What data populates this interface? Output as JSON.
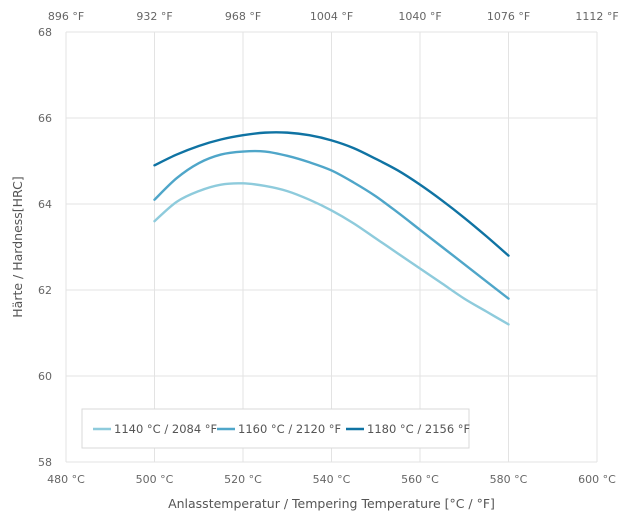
{
  "chart_data": {
    "type": "line",
    "xlabel": "Anlasstemperatur / Tempering Temperature [°C / °F]",
    "ylabel": "Härte / Hardness[HRC]",
    "xlim": [
      480,
      600
    ],
    "ylim": [
      58,
      68
    ],
    "grid": true,
    "legend_position": "bottom-left",
    "x_ticks": [
      480,
      500,
      520,
      540,
      560,
      580,
      600
    ],
    "x_tick_labels": [
      "480 °C",
      "500 °C",
      "520 °C",
      "540 °C",
      "560 °C",
      "580 °C",
      "600 °C"
    ],
    "x2_tick_labels": [
      "896 °F",
      "932 °F",
      "968 °F",
      "1004 °F",
      "1040 °F",
      "1076 °F",
      "1112 °F"
    ],
    "y_ticks": [
      58,
      60,
      62,
      64,
      66,
      68
    ],
    "y_tick_labels": [
      "58",
      "60",
      "62",
      "64",
      "66",
      "68"
    ],
    "series": [
      {
        "name": "1140 °C / 2084 °F",
        "color": "#8ecbdc",
        "x": [
          500,
          505,
          510,
          515,
          520,
          525,
          530,
          535,
          540,
          545,
          550,
          555,
          560,
          565,
          570,
          575,
          580
        ],
        "values": [
          63.6,
          64.05,
          64.3,
          64.45,
          64.48,
          64.42,
          64.3,
          64.1,
          63.85,
          63.55,
          63.2,
          62.85,
          62.5,
          62.15,
          61.8,
          61.5,
          61.2
        ]
      },
      {
        "name": "1160 °C / 2120 °F",
        "color": "#4fa6c9",
        "x": [
          500,
          505,
          510,
          515,
          520,
          525,
          530,
          535,
          540,
          545,
          550,
          555,
          560,
          565,
          570,
          575,
          580
        ],
        "values": [
          64.1,
          64.6,
          64.95,
          65.15,
          65.22,
          65.22,
          65.12,
          64.97,
          64.78,
          64.5,
          64.18,
          63.8,
          63.4,
          63.0,
          62.6,
          62.2,
          61.8
        ]
      },
      {
        "name": "1180 °C / 2156 °F",
        "color": "#0f73a3",
        "x": [
          500,
          505,
          510,
          515,
          520,
          525,
          530,
          535,
          540,
          545,
          550,
          555,
          560,
          565,
          570,
          575,
          580
        ],
        "values": [
          64.9,
          65.15,
          65.35,
          65.5,
          65.6,
          65.66,
          65.66,
          65.6,
          65.48,
          65.3,
          65.05,
          64.78,
          64.45,
          64.08,
          63.68,
          63.25,
          62.8
        ]
      }
    ]
  }
}
